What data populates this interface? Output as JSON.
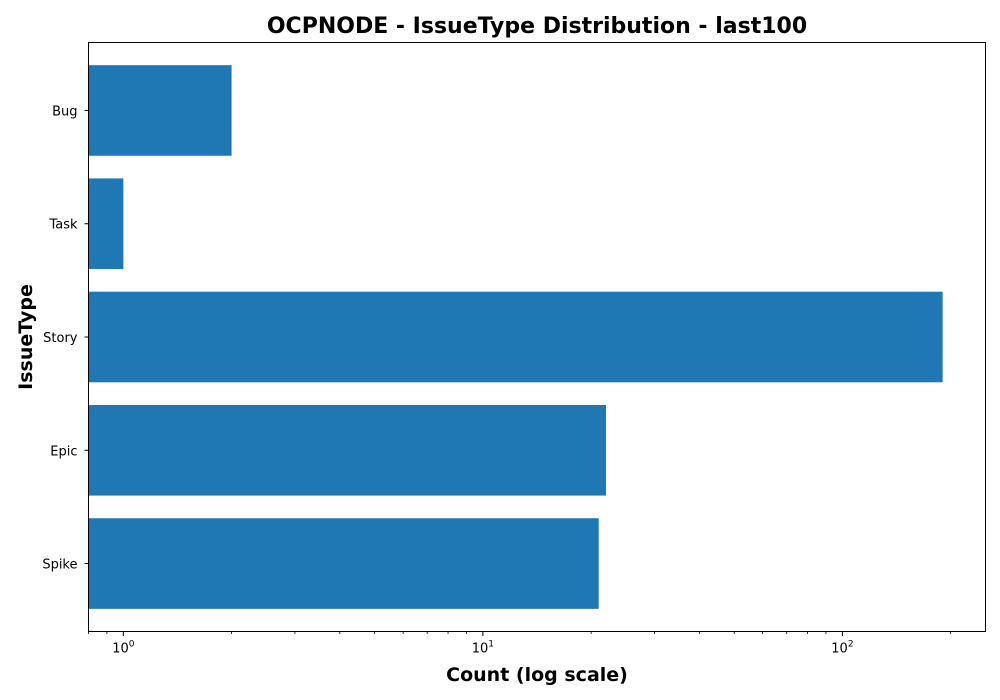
{
  "chart_data": {
    "type": "bar",
    "orientation": "horizontal",
    "title": "OCPNODE - IssueType Distribution - last100",
    "xlabel": "Count (log scale)",
    "ylabel": "IssueType",
    "x_scale": "log",
    "xlim": [
      0.8,
      250
    ],
    "x_major_ticks": [
      {
        "value": 1,
        "base": "10",
        "exponent": "0"
      },
      {
        "value": 10,
        "base": "10",
        "exponent": "1"
      },
      {
        "value": 100,
        "base": "10",
        "exponent": "2"
      }
    ],
    "categories": [
      "Bug",
      "Task",
      "Story",
      "Epic",
      "Spike"
    ],
    "values": [
      2,
      1,
      190,
      22,
      21
    ],
    "bar_color": "#1f77b4",
    "grid": false,
    "legend": "none"
  }
}
